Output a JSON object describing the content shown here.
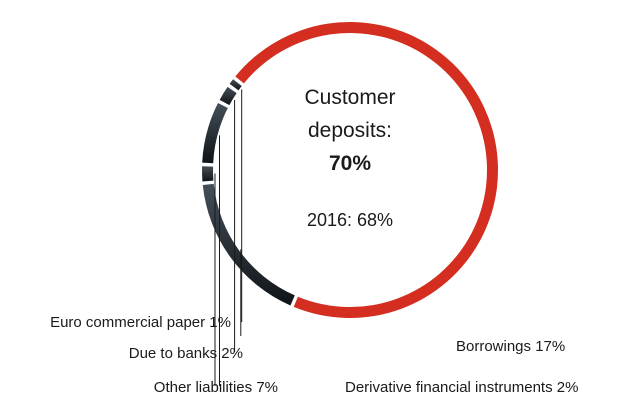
{
  "chart_data": {
    "type": "pie",
    "style": "donut",
    "slices": [
      {
        "label": "Customer deposits",
        "value": 70,
        "color": "#d42e20"
      },
      {
        "label": "Borrowings",
        "value": 17,
        "color": "#2b343c"
      },
      {
        "label": "Derivative financial instruments",
        "value": 2,
        "color": "#2b343c"
      },
      {
        "label": "Other liabilities",
        "value": 7,
        "color": "#2b343c"
      },
      {
        "label": "Due to banks",
        "value": 2,
        "color": "#2b343c"
      },
      {
        "label": "Euro commercial paper",
        "value": 1,
        "color": "#2b343c"
      }
    ],
    "center": {
      "line1": "Customer",
      "line2": "deposits:",
      "value": "70%",
      "prior": "2016: 68%"
    },
    "labels": {
      "borrowings": "Borrowings 17%",
      "derivatives": "Derivative financial instruments 2%",
      "other": "Other liabilities 7%",
      "banks": "Due to banks 2%",
      "ecp": "Euro commercial paper 1%"
    }
  }
}
